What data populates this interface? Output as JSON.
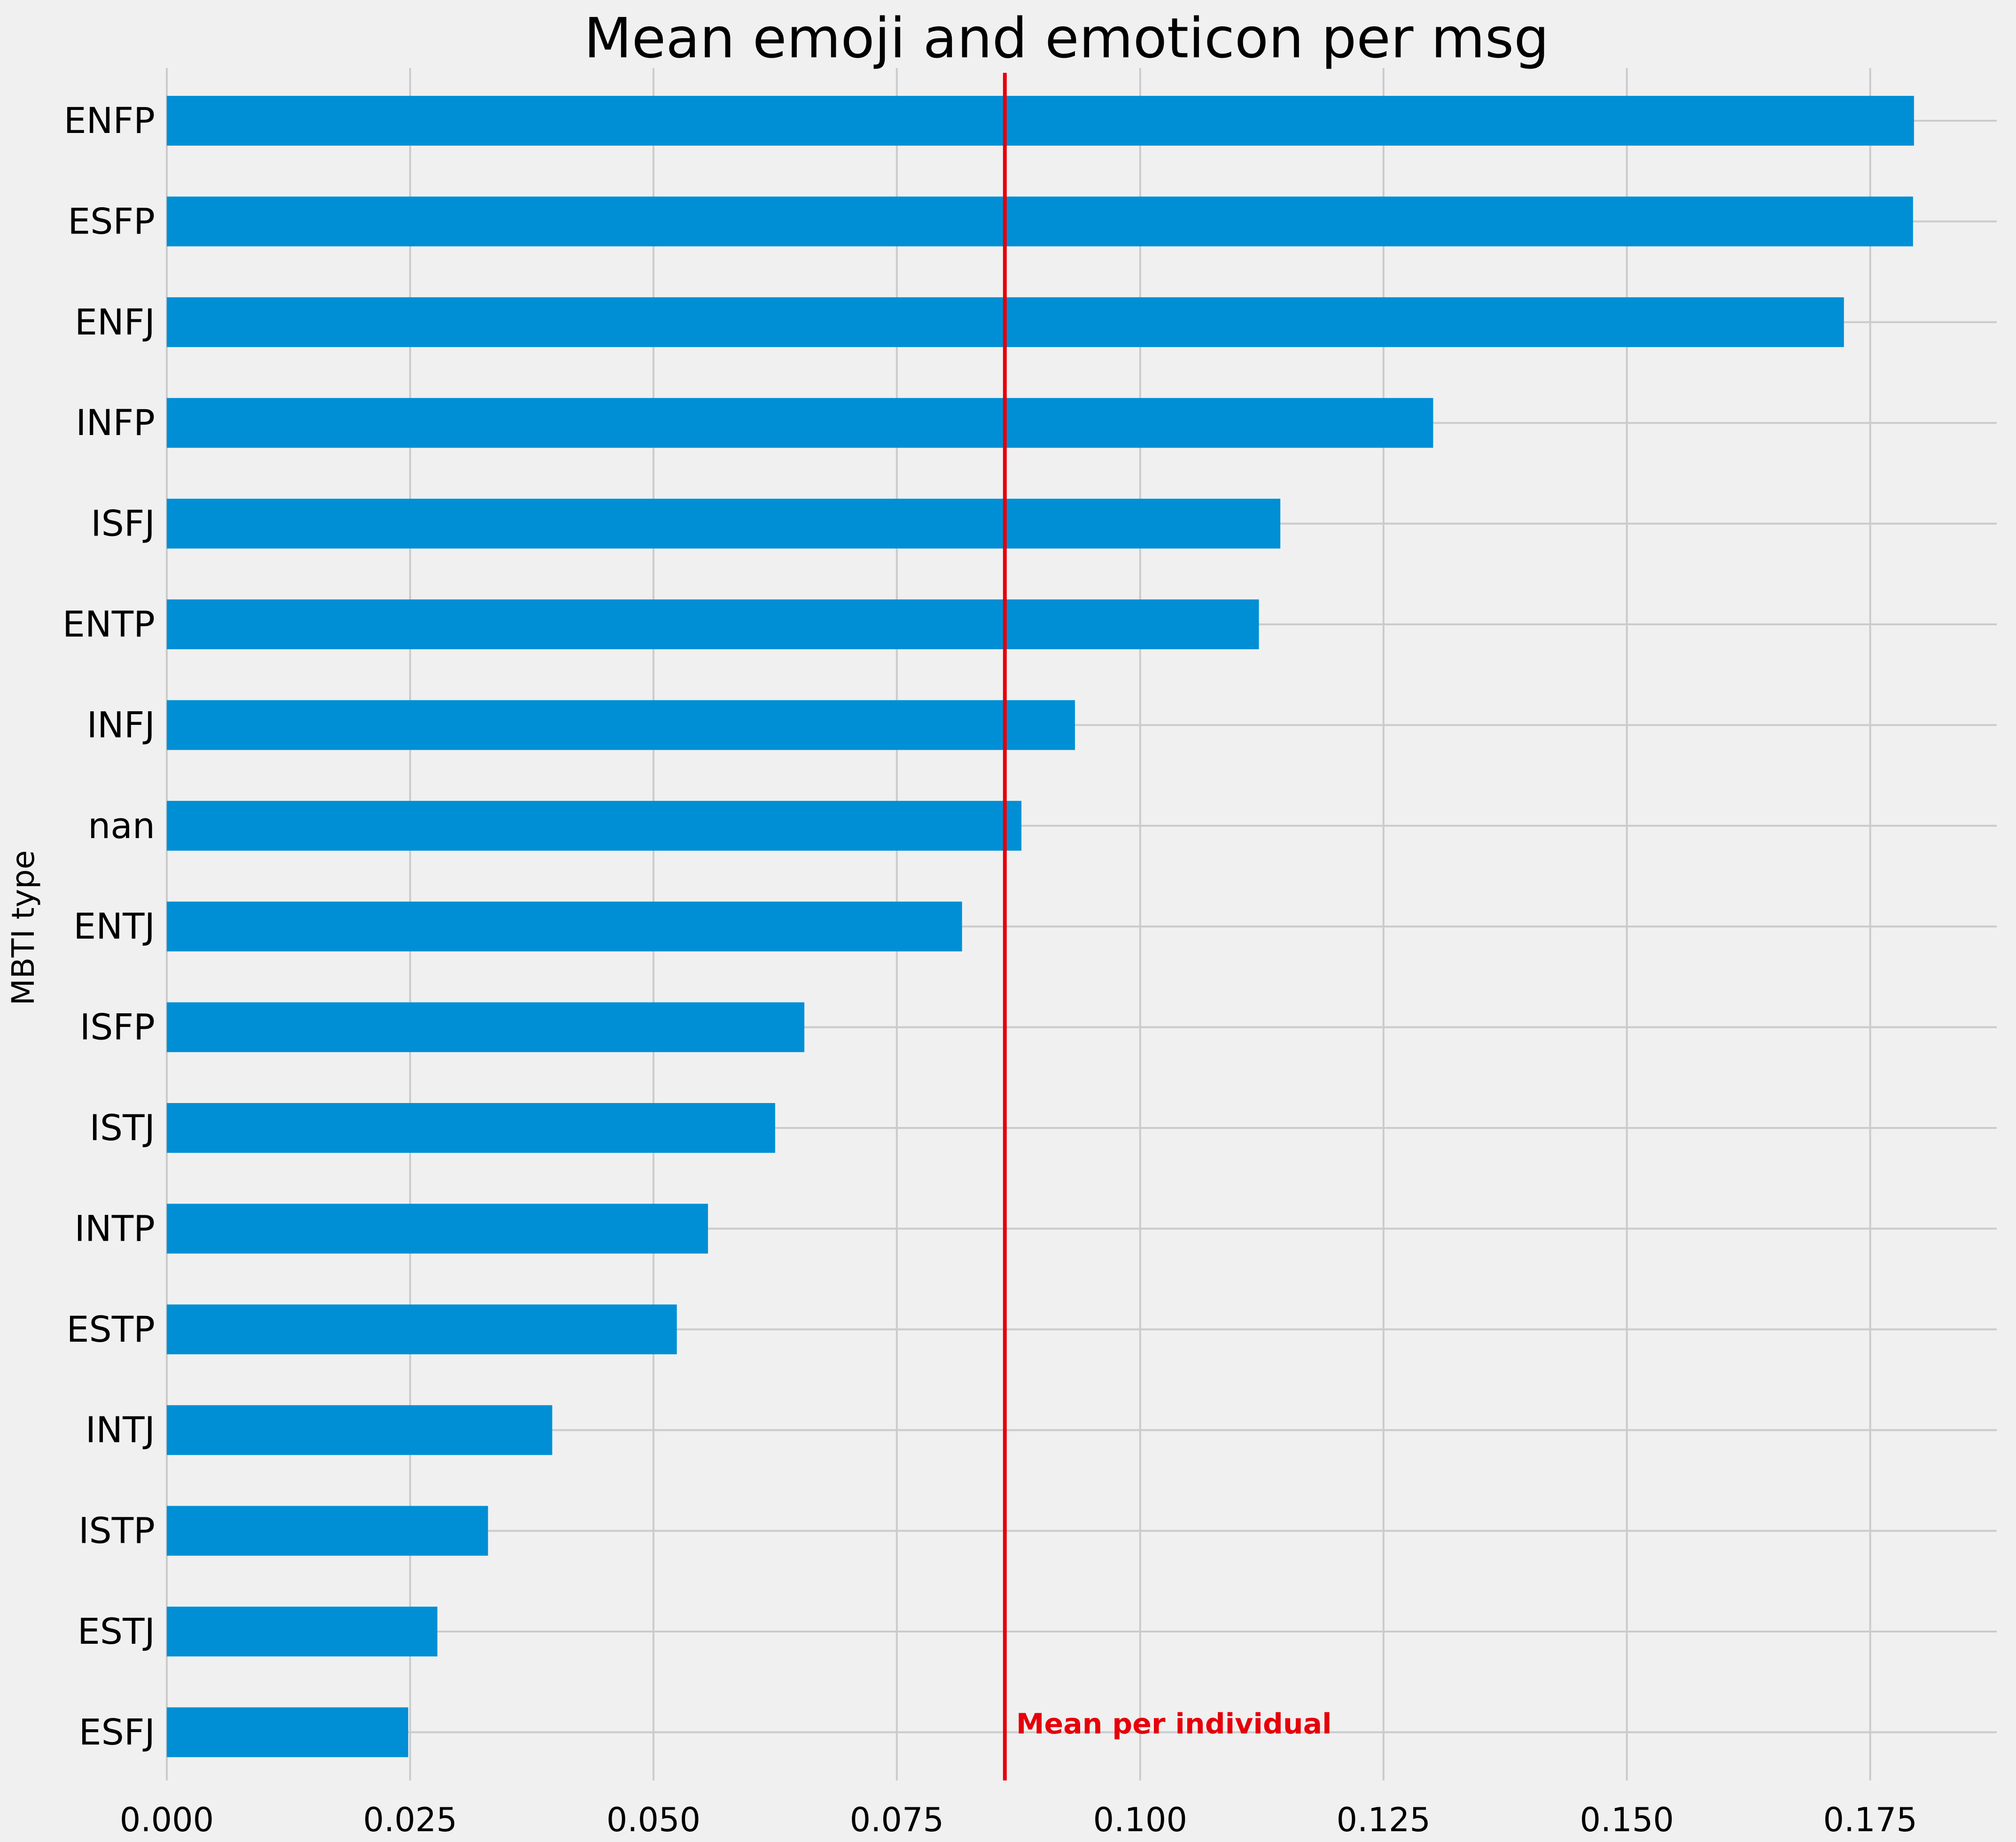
{
  "chart_data": {
    "type": "bar",
    "orientation": "horizontal",
    "title": "Mean emoji and emoticon per msg",
    "xlabel": "",
    "ylabel": "MBTI type",
    "categories": [
      "ENFP",
      "ESFP",
      "ENFJ",
      "INFP",
      "ISFJ",
      "ENTP",
      "INFJ",
      "nan",
      "ENTJ",
      "ISFP",
      "ISTJ",
      "INTP",
      "ESTP",
      "INTJ",
      "ISTP",
      "ESTJ",
      "ESFJ"
    ],
    "values": [
      0.1795,
      0.1794,
      0.1723,
      0.1301,
      0.1144,
      0.1122,
      0.0933,
      0.0878,
      0.0817,
      0.0655,
      0.0625,
      0.0556,
      0.0524,
      0.0396,
      0.033,
      0.0278,
      0.0248
    ],
    "xlim": [
      0,
      0.188
    ],
    "xticks": [
      "0.000",
      "0.025",
      "0.050",
      "0.075",
      "0.100",
      "0.125",
      "0.150",
      "0.175"
    ],
    "grid": true,
    "reference_line": {
      "value": 0.0861,
      "label": "Mean per individual"
    },
    "colors": {
      "bar": "#008fd5",
      "reference": "#e5000b",
      "grid": "#cbcbcb",
      "background": "#f0f0f0",
      "text": "#000000"
    }
  }
}
